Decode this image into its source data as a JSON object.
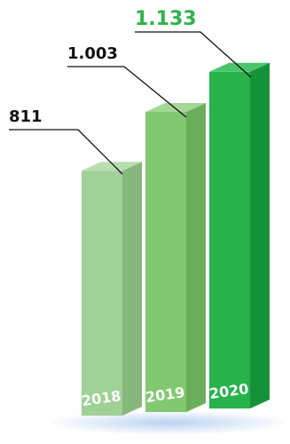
{
  "chart_data": {
    "type": "bar",
    "style": "3d-columns",
    "categories": [
      "2018",
      "2019",
      "2020"
    ],
    "values": [
      811,
      1003,
      1133
    ],
    "value_labels": [
      "811",
      "1.003",
      "1.133"
    ],
    "title": "",
    "xlabel": "",
    "ylabel": "",
    "ylim": [
      0,
      1200
    ],
    "grid": false,
    "legend": "none",
    "colors": {
      "bars": [
        {
          "front": "#9fd095",
          "side": "#86b87d",
          "top": "#b9ddb0"
        },
        {
          "front": "#82c870",
          "side": "#6aae5b",
          "top": "#a4d795"
        },
        {
          "front": "#27b24b",
          "side": "#16933a",
          "top": "#4cc56a"
        }
      ],
      "value_label_colors": [
        "#111111",
        "#111111",
        "#2cb34a"
      ],
      "leader_line": "#111111",
      "year_label": "#ffffff"
    }
  }
}
